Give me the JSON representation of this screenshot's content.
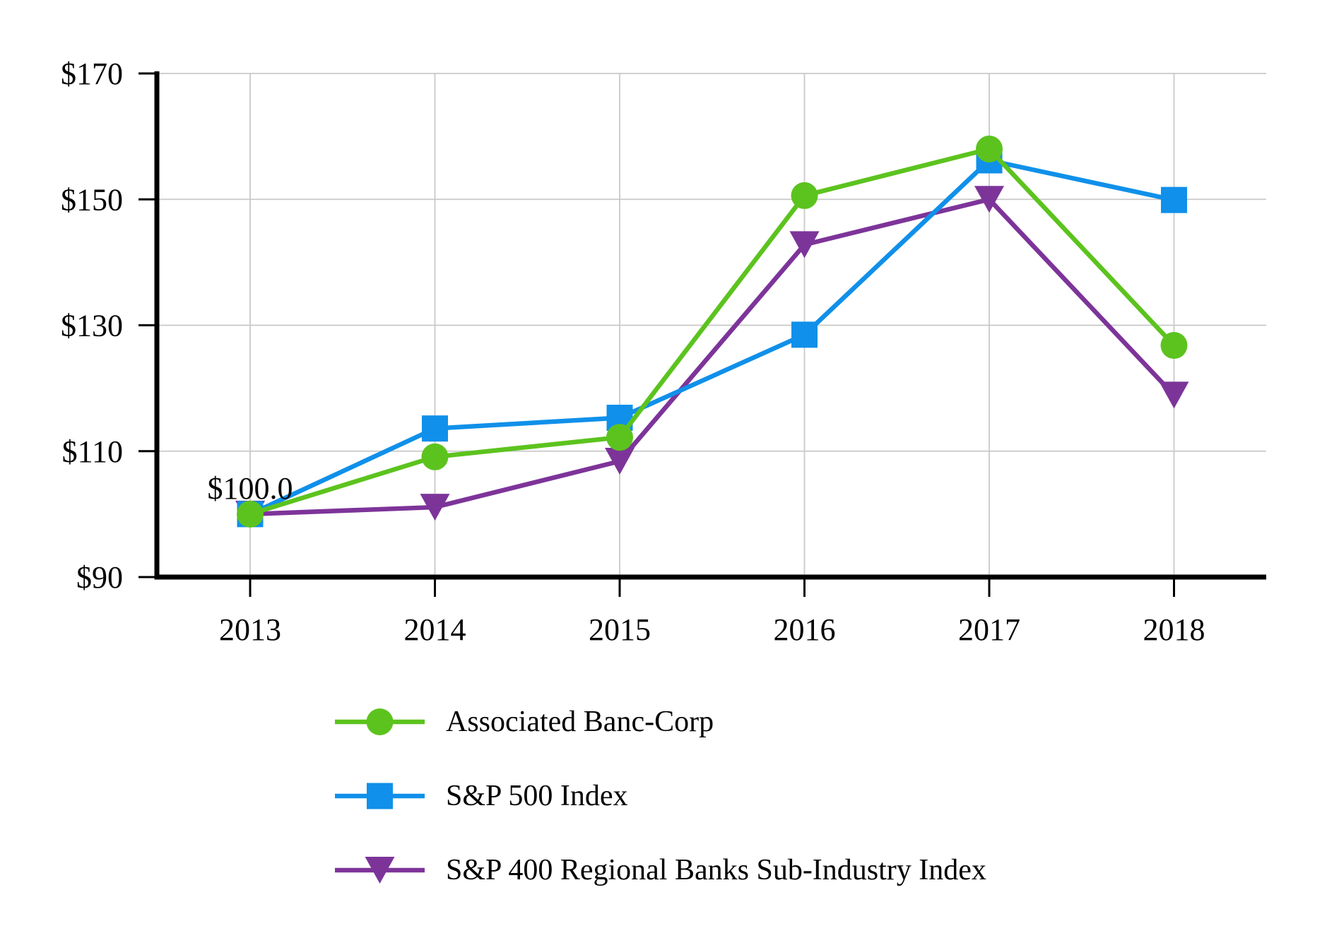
{
  "page": {
    "background": "#ffffff",
    "text_color": "#000000"
  },
  "chart_data": {
    "type": "line",
    "title": "",
    "x_labels": [
      "2013",
      "2014",
      "2015",
      "2016",
      "2017",
      "2018"
    ],
    "series": [
      {
        "name": "Associated Banc-Corp",
        "marker": "circle",
        "color": "#5CC31E",
        "values": [
          100.0,
          109.1,
          112.2,
          150.6,
          158.0,
          126.8
        ]
      },
      {
        "name": "S&P 500 Index",
        "marker": "square",
        "color": "#1090EA",
        "values": [
          100.0,
          113.6,
          115.3,
          128.5,
          156.2,
          149.9
        ]
      },
      {
        "name": "S&P 400 Regional Banks Sub-Industry Index",
        "marker": "triangle-down",
        "color": "#7D3499",
        "values": [
          100.0,
          101.1,
          108.4,
          142.8,
          150.0,
          118.9
        ]
      }
    ],
    "ylim": [
      90,
      170
    ],
    "yticks": [
      {
        "value": 90,
        "label": "$90"
      },
      {
        "value": 110,
        "label": "$110"
      },
      {
        "value": 130,
        "label": "$130"
      },
      {
        "value": 150,
        "label": "$150"
      },
      {
        "value": 170,
        "label": "$170"
      }
    ],
    "grid": true,
    "gridline_color": "#c9c9c9",
    "axis_color": "#000000",
    "annotation": {
      "text": "$100.0",
      "x_index": 0,
      "value": 100.0
    },
    "legend_position": "bottom-left"
  }
}
